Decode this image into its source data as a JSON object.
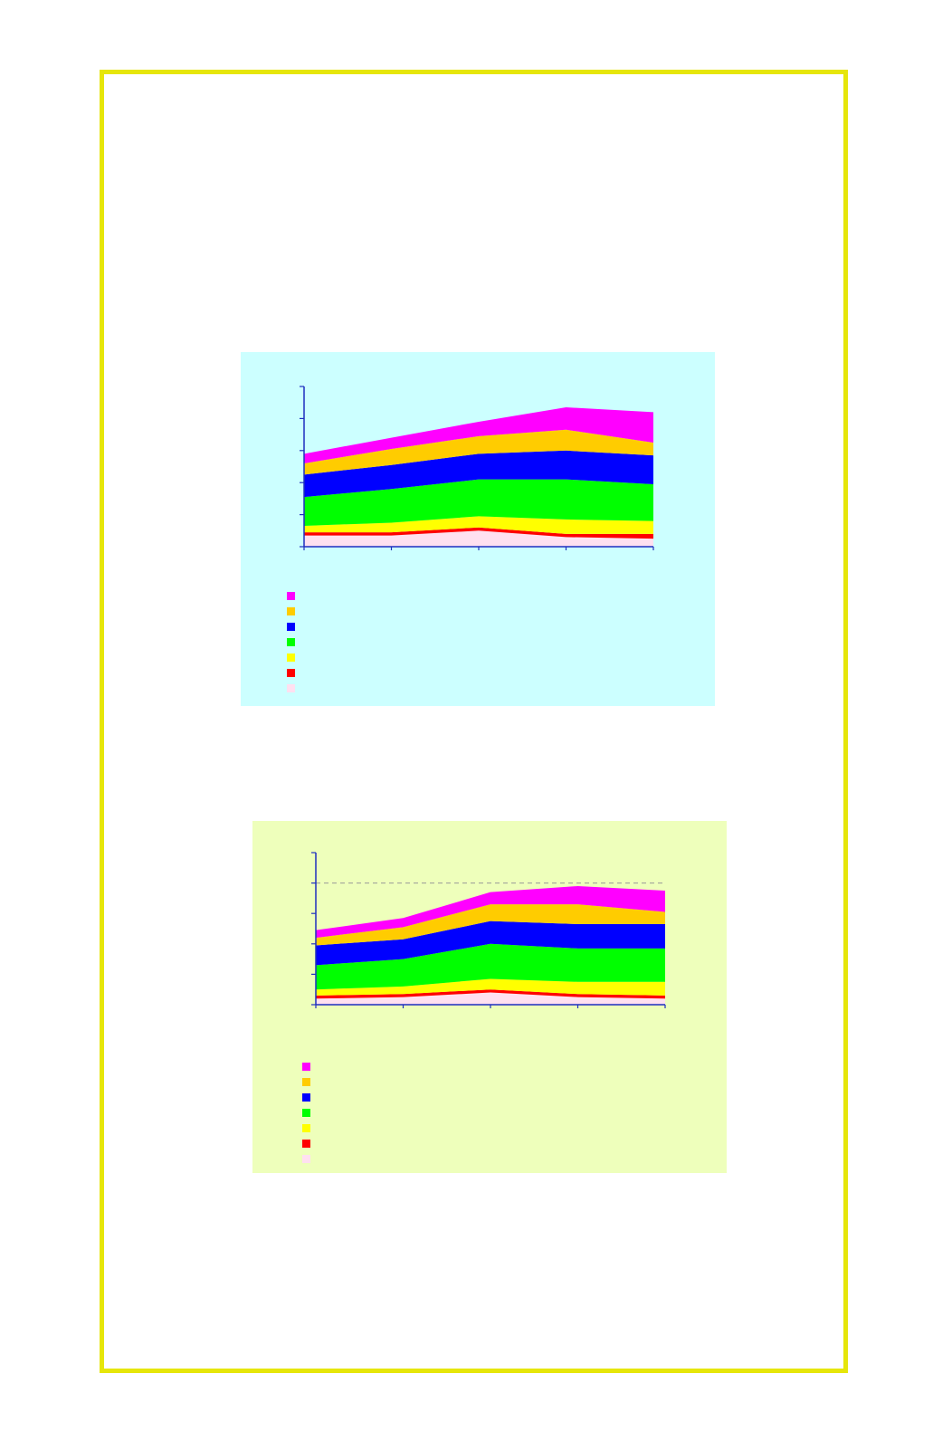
{
  "theme": {
    "frame_border": "#e6e60a",
    "panel1_background": "#ccffff",
    "panel2_background": "#eeffbb",
    "axis_color": "#1f2fbf",
    "reference_line_color": "#999999"
  },
  "chart_data": [
    {
      "type": "area",
      "stacked": true,
      "title": "",
      "xlabel": "",
      "ylabel": "",
      "x": [
        1,
        2,
        3,
        4,
        5
      ],
      "ylim": [
        0,
        100
      ],
      "y_ticks": [
        0,
        20,
        40,
        60,
        80,
        100
      ],
      "grid": false,
      "legend_position": "bottom-left",
      "series": [
        {
          "color": "#ffe0f0",
          "values": [
            7,
            7,
            10,
            6,
            5
          ]
        },
        {
          "color": "#ff0000",
          "values": [
            2,
            2,
            2,
            2,
            3
          ]
        },
        {
          "color": "#ffff00",
          "values": [
            4,
            6,
            7,
            9,
            8
          ]
        },
        {
          "color": "#00ff00",
          "values": [
            18,
            21,
            23,
            25,
            23
          ]
        },
        {
          "color": "#0000ff",
          "values": [
            14,
            15,
            16,
            18,
            18
          ]
        },
        {
          "color": "#ffcc00",
          "values": [
            7,
            10,
            11,
            13,
            8
          ]
        },
        {
          "color": "#ff00ff",
          "values": [
            6,
            7,
            9,
            14,
            19
          ]
        }
      ]
    },
    {
      "type": "area",
      "stacked": true,
      "title": "",
      "xlabel": "",
      "ylabel": "",
      "x": [
        1,
        2,
        3,
        4,
        5
      ],
      "ylim": [
        0,
        100
      ],
      "y_ticks": [
        0,
        20,
        40,
        60,
        80,
        100
      ],
      "reference_line": 80,
      "grid": false,
      "legend_position": "bottom-left",
      "series": [
        {
          "color": "#ffe0f0",
          "values": [
            4,
            5,
            8,
            5,
            4
          ]
        },
        {
          "color": "#ff0000",
          "values": [
            2,
            2,
            2,
            2,
            2
          ]
        },
        {
          "color": "#ffff00",
          "values": [
            4,
            5,
            7,
            8,
            9
          ]
        },
        {
          "color": "#00ff00",
          "values": [
            16,
            18,
            23,
            22,
            22
          ]
        },
        {
          "color": "#0000ff",
          "values": [
            13,
            13,
            15,
            16,
            16
          ]
        },
        {
          "color": "#ffcc00",
          "values": [
            5,
            8,
            11,
            13,
            8
          ]
        },
        {
          "color": "#ff00ff",
          "values": [
            5,
            6,
            8,
            12,
            14
          ]
        }
      ]
    }
  ]
}
